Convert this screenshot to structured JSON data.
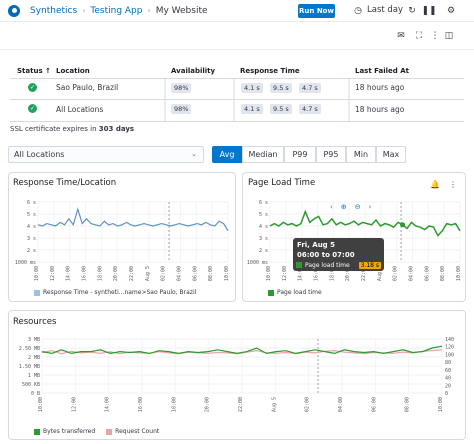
{
  "topbar": {
    "breadcrumbs": [
      "Synthetics",
      "Testing App",
      "My Website"
    ],
    "run_now": "Run Now",
    "last_day": "Last day"
  },
  "status_table": {
    "headers": [
      "Status ↑",
      "Location",
      "Availability",
      "Response Time",
      "Last Failed At"
    ],
    "rows": [
      {
        "location": "Sao Paulo, Brazil",
        "availability": "98%",
        "rt": [
          "4.1 s",
          "9.5 s",
          "4.7 s"
        ],
        "last_failed": "18 hours ago"
      },
      {
        "location": "All Locations",
        "availability": "98%",
        "rt": [
          "4.1 s",
          "9.5 s",
          "4.7 s"
        ],
        "last_failed": "18 hours ago"
      }
    ],
    "ssl_prefix": "SSL certificate expires in",
    "ssl_value": "303 days"
  },
  "filters": {
    "location_select": "All Locations",
    "stats": [
      "Avg",
      "Median",
      "P99",
      "P95",
      "Min",
      "Max"
    ],
    "active": "Avg"
  },
  "response_panel": {
    "title": "Response Time/Location",
    "legend": "Response Time - syntheti...name>Sao Paulo, Brazil"
  },
  "page_load_panel": {
    "title": "Page Load Time",
    "legend": "Page load time",
    "tooltip": {
      "date": "Fri, Aug 5",
      "range": "06:00 to 07:00",
      "label": "Page load time",
      "value": "3.18 s"
    }
  },
  "resources_panel": {
    "title": "Resources",
    "legend": [
      "Bytes transferred",
      "Request Count"
    ]
  },
  "colors": {
    "accent": "#0077cc",
    "success": "#24a160",
    "line_blue": "#6092c0",
    "line_green": "#2e9a2e",
    "line_pink": "#e7a4a4"
  },
  "chart_data": [
    {
      "type": "line",
      "title": "Response Time/Location",
      "ylabels": [
        "6 s",
        "5 s",
        "4 s",
        "3 s",
        "2 s",
        "1000 ms"
      ],
      "xlabels": [
        "10:00",
        "12:00",
        "14:00",
        "16:00",
        "18:00",
        "20:00",
        "22:00",
        "Aug 5",
        "02:00",
        "04:00",
        "06:00",
        "08:00",
        "10:00"
      ],
      "ylim": [
        0,
        6
      ],
      "series": [
        {
          "name": "Response Time - syntheti...name>Sao Paulo, Brazil",
          "values": [
            4.1,
            4.0,
            4.2,
            4.1,
            4.0,
            4.3,
            4.1,
            4.6,
            4.1,
            5.4,
            4.2,
            4.6,
            4.2,
            4.1,
            4.0,
            4.4,
            4.1,
            4.2,
            4.0,
            4.1,
            4.3,
            4.1,
            4.0,
            4.1,
            4.2,
            4.1,
            4.0,
            4.1,
            4.2,
            4.1,
            4.0,
            4.1,
            4.2,
            4.1,
            4.0,
            4.1,
            4.2,
            4.1,
            4.3,
            4.1,
            4.0,
            4.4,
            4.2,
            3.6
          ]
        }
      ]
    },
    {
      "type": "line",
      "title": "Page Load Time",
      "ylabels": [
        "6 s",
        "5 s",
        "4 s",
        "3 s",
        "2 s",
        "1000 ms"
      ],
      "xlabels": [
        "10:00",
        "12:00",
        "14:00",
        "16:00",
        "18:00",
        "20:00",
        "22:00",
        "Aug 5",
        "02:00",
        "04:00",
        "06:00",
        "08:00",
        "10:00"
      ],
      "ylim": [
        0,
        6
      ],
      "series": [
        {
          "name": "Page load time",
          "values": [
            4.0,
            4.2,
            4.0,
            4.3,
            4.1,
            4.2,
            4.0,
            4.2,
            5.2,
            4.3,
            4.6,
            4.8,
            4.1,
            4.2,
            4.6,
            4.1,
            4.3,
            4.1,
            4.2,
            4.4,
            4.1,
            4.3,
            4.2,
            4.1,
            4.5,
            4.0,
            4.2,
            4.1,
            3.9,
            4.3,
            4.1,
            3.8,
            4.3,
            4.0,
            3.9,
            3.7,
            4.0,
            3.9,
            3.2,
            3.6,
            4.2,
            4.1,
            4.2,
            3.6
          ]
        }
      ]
    },
    {
      "type": "line",
      "title": "Resources",
      "ylabels_left": [
        "3 MB",
        "2.50 MB",
        "2 MB",
        "1.50 MB",
        "1 MB",
        "500 KB",
        "0 B"
      ],
      "ylabels_right": [
        "140",
        "120",
        "100",
        "80",
        "60",
        "40",
        "20",
        "0"
      ],
      "xlabels": [
        "10:00",
        "12:00",
        "14:00",
        "16:00",
        "18:00",
        "20:00",
        "22:00",
        "Aug 5",
        "02:00",
        "04:00",
        "06:00",
        "08:00",
        "10:00"
      ],
      "series": [
        {
          "name": "Bytes transferred",
          "values": [
            2.3,
            2.2,
            2.4,
            2.2,
            2.3,
            2.3,
            2.4,
            2.2,
            2.3,
            2.25,
            2.3,
            2.2,
            2.35,
            2.3,
            2.2,
            2.3,
            2.25,
            2.3,
            2.4,
            2.3,
            2.2,
            2.3,
            2.5,
            2.2,
            2.3,
            2.35,
            2.2,
            2.3,
            2.4,
            2.3,
            2.2,
            2.4,
            2.3,
            2.25,
            2.3,
            2.2,
            2.3,
            2.4,
            2.25,
            2.3,
            2.5,
            2.6
          ]
        },
        {
          "name": "Request Count",
          "values": [
            105,
            110,
            102,
            108,
            104,
            106,
            103,
            107,
            102,
            106,
            104,
            103,
            107,
            104,
            102,
            106,
            104,
            103,
            105,
            104,
            102,
            106,
            110,
            104,
            103,
            105,
            102,
            106,
            104,
            108,
            110,
            106,
            104,
            102,
            105,
            104,
            103,
            106,
            104,
            108,
            110,
            112
          ]
        }
      ]
    }
  ]
}
